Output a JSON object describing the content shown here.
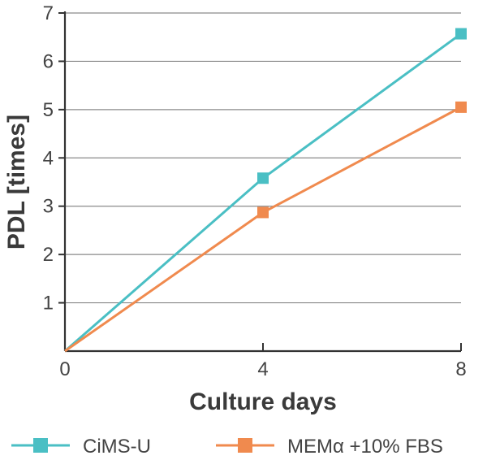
{
  "chart_data": {
    "type": "line",
    "title": "",
    "xlabel": "Culture days",
    "ylabel": "PDL [times]",
    "x": [
      0,
      4,
      8
    ],
    "xticks": [
      "0",
      "4",
      "8"
    ],
    "yticks": [
      "1",
      "2",
      "3",
      "4",
      "5",
      "6",
      "7"
    ],
    "xlim": [
      0,
      8
    ],
    "ylim": [
      0,
      7
    ],
    "grid": "horizontal",
    "legend_position": "bottom",
    "series": [
      {
        "name": "CiMS-U",
        "color": "#4ABFC4",
        "values": [
          0,
          3.58,
          6.57
        ]
      },
      {
        "name": "MEMα +10% FBS",
        "color": "#F08A4E",
        "values": [
          0,
          2.87,
          5.05
        ]
      }
    ]
  }
}
